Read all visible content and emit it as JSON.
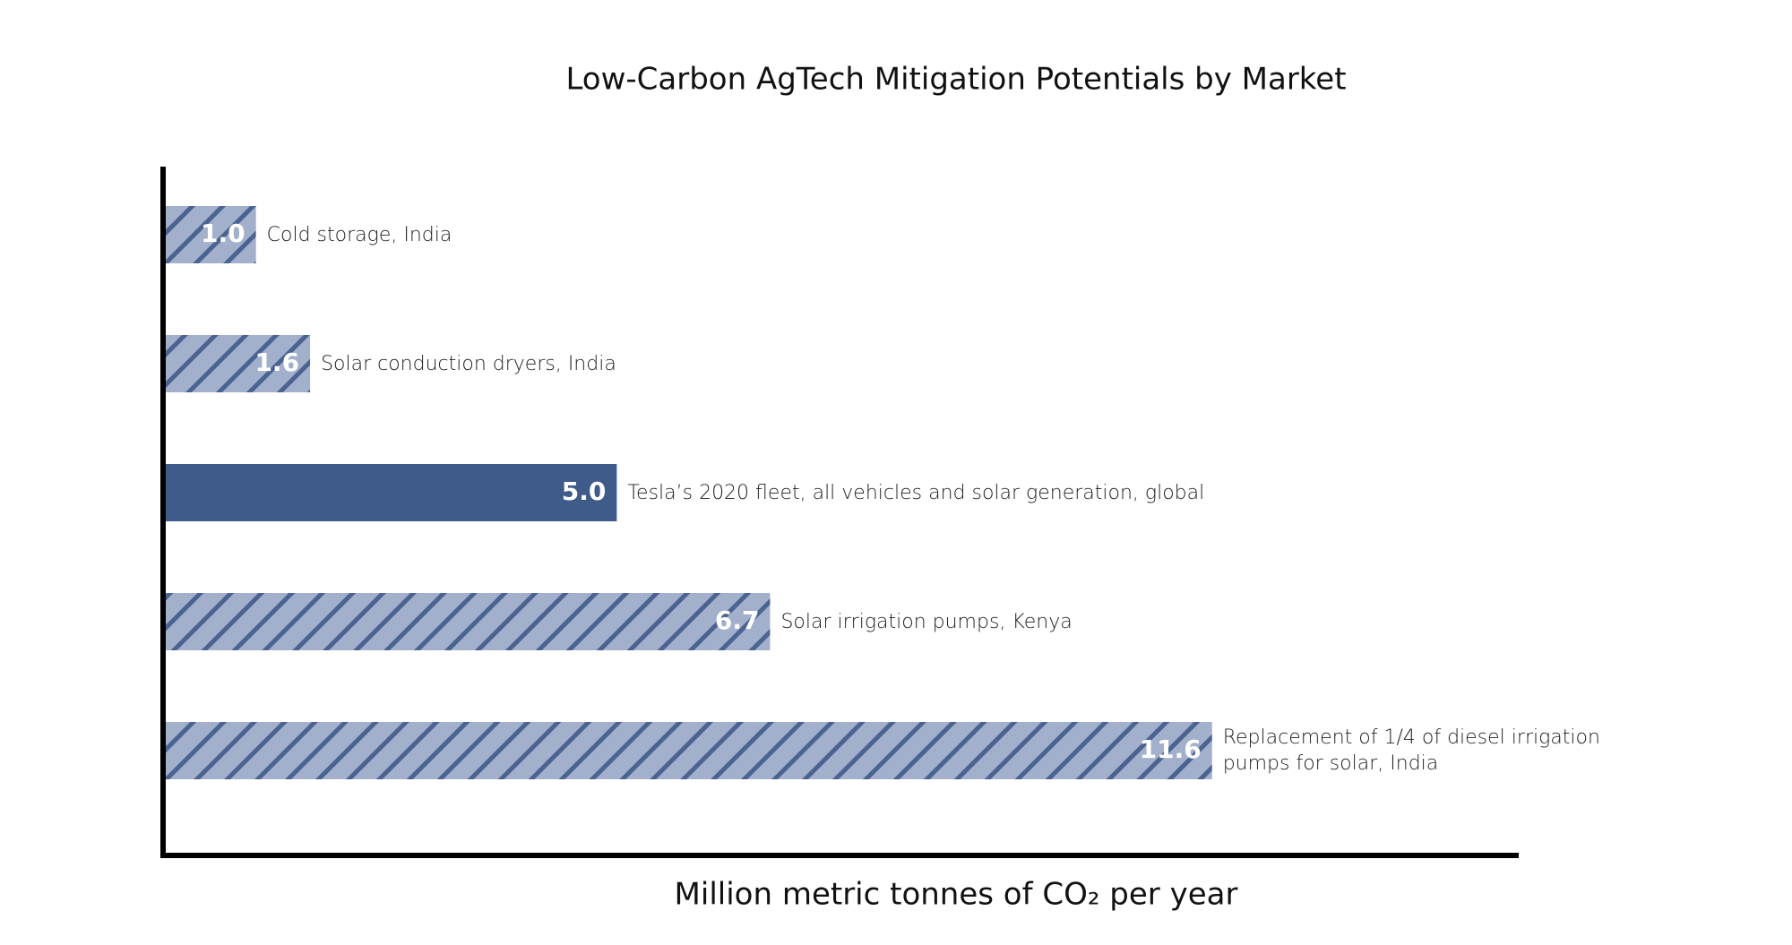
{
  "chart_data": {
    "type": "hbar",
    "title": "Low-Carbon AgTech Mitigation Potentials by Market",
    "x_label": "Million metric tonnes of CO₂ per year",
    "categories": [
      "Cold storage, India",
      "Solar conduction dryers, India",
      "Tesla’s 2020 fleet, all vehicles and solar generation, global",
      "Solar irrigation pumps, Kenya",
      "Replacement of 1/4 of diesel irrigation pumps for solar, India"
    ],
    "values": [
      1.0,
      1.6,
      5.0,
      6.7,
      11.6
    ],
    "value_labels": [
      "1.0",
      "1.6",
      "5.0",
      "6.7",
      "11.6"
    ],
    "bar_styles": [
      "hatched",
      "hatched",
      "solid",
      "hatched",
      "hatched"
    ],
    "color": "#a3b0cb",
    "hatch_color": "#4a6391",
    "solid_color": "#3f5b8a",
    "xlim": [
      0,
      15
    ]
  }
}
